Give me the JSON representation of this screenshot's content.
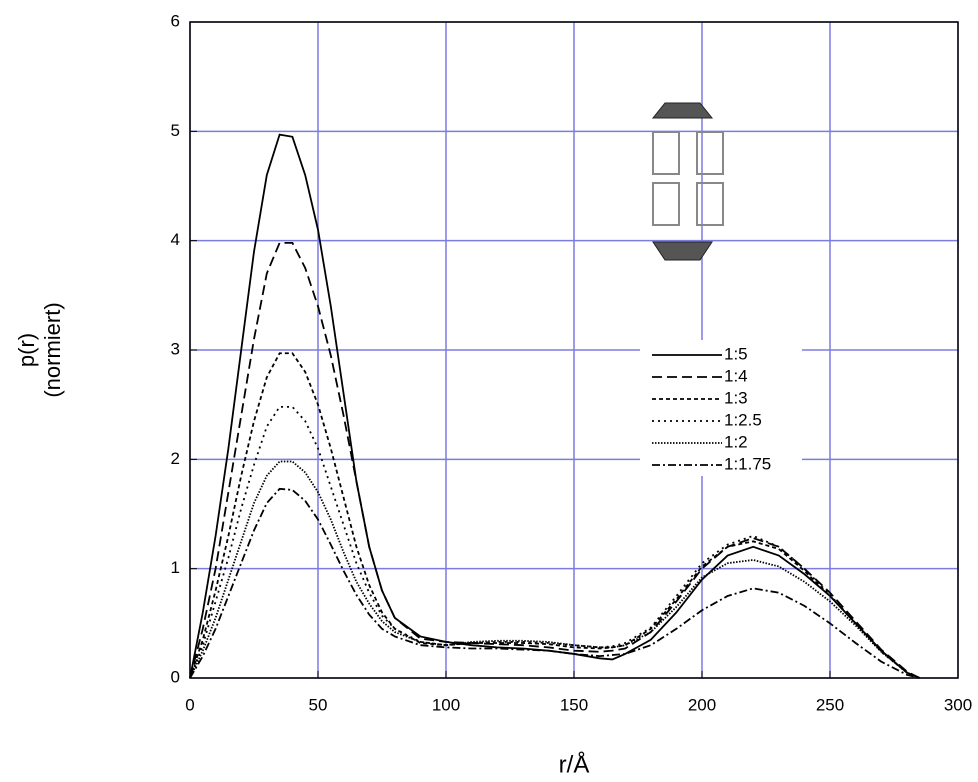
{
  "chart_data": {
    "type": "line",
    "xlabel": "r/Å",
    "ylabel": [
      "p(r)",
      "(normiert)"
    ],
    "xlim": [
      0,
      300
    ],
    "ylim": [
      0,
      6
    ],
    "xticks": [
      0,
      50,
      100,
      150,
      200,
      250,
      300
    ],
    "yticks": [
      0,
      1,
      2,
      3,
      4,
      5,
      6
    ],
    "grid": true,
    "grid_color": "#7c7ce0",
    "x": [
      0,
      5,
      10,
      15,
      20,
      25,
      30,
      35,
      40,
      45,
      50,
      55,
      60,
      65,
      70,
      75,
      80,
      90,
      100,
      110,
      120,
      130,
      140,
      150,
      160,
      165,
      170,
      180,
      190,
      200,
      210,
      220,
      230,
      240,
      250,
      260,
      270,
      280,
      285
    ],
    "series": [
      {
        "name": "1:5",
        "color": "#000000",
        "dash": "none",
        "values": [
          0,
          0.6,
          1.3,
          2.1,
          3.0,
          3.9,
          4.6,
          4.97,
          4.95,
          4.6,
          4.1,
          3.4,
          2.6,
          1.8,
          1.2,
          0.8,
          0.55,
          0.38,
          0.33,
          0.3,
          0.28,
          0.27,
          0.25,
          0.22,
          0.18,
          0.17,
          0.22,
          0.35,
          0.6,
          0.9,
          1.12,
          1.2,
          1.12,
          0.95,
          0.75,
          0.5,
          0.25,
          0.05,
          0
        ]
      },
      {
        "name": "1:4",
        "color": "#000000",
        "dash": "10,5",
        "values": [
          0,
          0.45,
          1.0,
          1.7,
          2.4,
          3.1,
          3.7,
          3.98,
          3.98,
          3.75,
          3.4,
          2.95,
          2.4,
          1.8,
          1.2,
          0.8,
          0.55,
          0.36,
          0.33,
          0.32,
          0.31,
          0.3,
          0.28,
          0.25,
          0.24,
          0.25,
          0.27,
          0.42,
          0.7,
          1.0,
          1.2,
          1.28,
          1.2,
          1.0,
          0.78,
          0.52,
          0.26,
          0.06,
          0
        ]
      },
      {
        "name": "1:3",
        "color": "#000000",
        "dash": "4,3",
        "values": [
          0,
          0.35,
          0.8,
          1.3,
          1.85,
          2.35,
          2.75,
          2.97,
          2.97,
          2.8,
          2.5,
          2.1,
          1.65,
          1.2,
          0.85,
          0.6,
          0.45,
          0.32,
          0.3,
          0.32,
          0.32,
          0.32,
          0.31,
          0.28,
          0.27,
          0.28,
          0.3,
          0.45,
          0.72,
          1.02,
          1.2,
          1.25,
          1.18,
          0.98,
          0.75,
          0.5,
          0.25,
          0.05,
          0
        ]
      },
      {
        "name": "1:2.5",
        "color": "#000000",
        "dash": "2,4",
        "values": [
          0,
          0.3,
          0.7,
          1.1,
          1.55,
          1.95,
          2.3,
          2.48,
          2.48,
          2.35,
          2.1,
          1.75,
          1.4,
          1.05,
          0.78,
          0.57,
          0.45,
          0.33,
          0.3,
          0.32,
          0.33,
          0.33,
          0.32,
          0.3,
          0.28,
          0.29,
          0.32,
          0.46,
          0.75,
          1.05,
          1.22,
          1.3,
          1.2,
          1.0,
          0.76,
          0.5,
          0.24,
          0.05,
          0
        ]
      },
      {
        "name": "1:2",
        "color": "#000000",
        "dash": "1.5,1.5",
        "values": [
          0,
          0.25,
          0.55,
          0.9,
          1.25,
          1.6,
          1.85,
          1.98,
          1.98,
          1.88,
          1.7,
          1.45,
          1.15,
          0.88,
          0.68,
          0.52,
          0.42,
          0.33,
          0.3,
          0.33,
          0.34,
          0.34,
          0.33,
          0.3,
          0.28,
          0.28,
          0.3,
          0.42,
          0.65,
          0.92,
          1.05,
          1.08,
          1.02,
          0.88,
          0.7,
          0.48,
          0.24,
          0.05,
          0
        ]
      },
      {
        "name": "1:1.75",
        "color": "#000000",
        "dash": "8,3,2,3",
        "values": [
          0,
          0.2,
          0.45,
          0.75,
          1.05,
          1.35,
          1.6,
          1.73,
          1.72,
          1.62,
          1.45,
          1.22,
          0.98,
          0.76,
          0.58,
          0.45,
          0.38,
          0.3,
          0.28,
          0.27,
          0.27,
          0.26,
          0.25,
          0.22,
          0.2,
          0.21,
          0.22,
          0.3,
          0.45,
          0.62,
          0.75,
          0.82,
          0.78,
          0.66,
          0.5,
          0.32,
          0.15,
          0.03,
          0
        ]
      }
    ]
  }
}
